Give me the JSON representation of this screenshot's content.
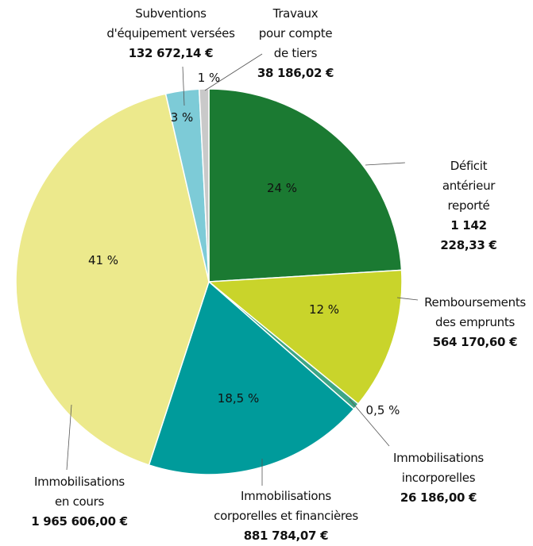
{
  "chart_data": {
    "type": "pie",
    "categories": [
      "Déficit antérieur\nreporté",
      "Remboursements\ndes emprunts",
      "Immobilisations\nincorporelles",
      "Immobilisations\ncorporelles et financières",
      "Immobilisations\nen cours",
      "Subventions\nd'équipement versées",
      "Travaux\npour compte\nde tiers"
    ],
    "values": [
      1142228.33,
      564170.6,
      26186.0,
      881784.07,
      1965606.0,
      132672.14,
      38186.02
    ],
    "value_labels": [
      "1 142 228,33 €",
      "564 170,60 €",
      "26 186,00 €",
      "881 784,07 €",
      "1 965 606,00 €",
      "132 672,14 €",
      "38 186,02 €"
    ],
    "percent_labels": [
      "24 %",
      "12 %",
      "0,5 %",
      "18,5 %",
      "41 %",
      "3 %",
      "1 %"
    ],
    "colors": [
      "#1b7a32",
      "#c9d42b",
      "#3ea686",
      "#009b9b",
      "#ece98c",
      "#7dcbd7",
      "#c9c9c9"
    ]
  }
}
